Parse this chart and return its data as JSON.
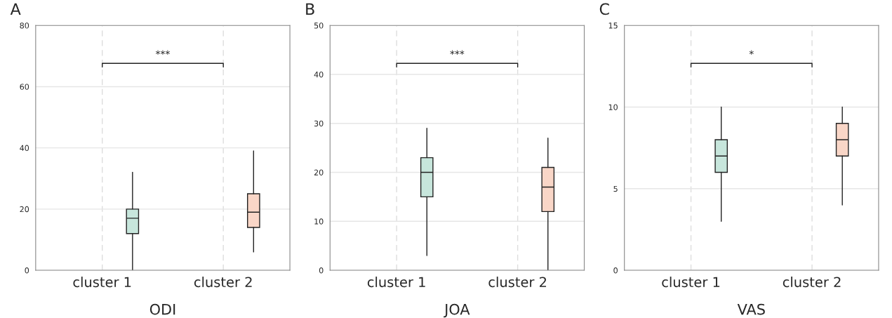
{
  "chart_data": [
    {
      "type": "box",
      "title": "A",
      "xlabel": "ODI",
      "categories": [
        "cluster 1",
        "cluster 2"
      ],
      "ylim": [
        0,
        80
      ],
      "yticks": [
        0,
        20,
        40,
        60,
        80
      ],
      "grid": true,
      "annotations": [
        "***"
      ],
      "series": [
        {
          "color": "#c7e6dc",
          "boxes": [
            {
              "low": 0,
              "q1": 12,
              "median": 17,
              "q3": 20,
              "high": 32
            },
            null
          ]
        },
        {
          "color": "#f9d6c7",
          "boxes": [
            null,
            {
              "low": 6,
              "q1": 14,
              "median": 19,
              "q3": 25,
              "high": 39
            }
          ]
        }
      ]
    },
    {
      "type": "box",
      "title": "B",
      "xlabel": "JOA",
      "categories": [
        "cluster 1",
        "cluster 2"
      ],
      "ylim": [
        0,
        50
      ],
      "yticks": [
        0,
        10,
        20,
        30,
        40,
        50
      ],
      "grid": true,
      "annotations": [
        "***"
      ],
      "series": [
        {
          "color": "#c7e6dc",
          "boxes": [
            {
              "low": 3,
              "q1": 15,
              "median": 20,
              "q3": 23,
              "high": 29
            },
            null
          ]
        },
        {
          "color": "#f9d6c7",
          "boxes": [
            null,
            {
              "low": 0,
              "q1": 12,
              "median": 17,
              "q3": 21,
              "high": 27
            }
          ]
        }
      ]
    },
    {
      "type": "box",
      "title": "C",
      "xlabel": "VAS",
      "categories": [
        "cluster 1",
        "cluster 2"
      ],
      "ylim": [
        0,
        15
      ],
      "yticks": [
        0,
        5,
        10,
        15
      ],
      "grid": true,
      "annotations": [
        "*"
      ],
      "series": [
        {
          "color": "#c7e6dc",
          "boxes": [
            {
              "low": 3,
              "q1": 6,
              "median": 7,
              "q3": 8,
              "high": 10
            },
            null
          ]
        },
        {
          "color": "#f9d6c7",
          "boxes": [
            null,
            {
              "low": 4,
              "q1": 7,
              "median": 8,
              "q3": 9,
              "high": 10
            }
          ]
        }
      ]
    }
  ]
}
